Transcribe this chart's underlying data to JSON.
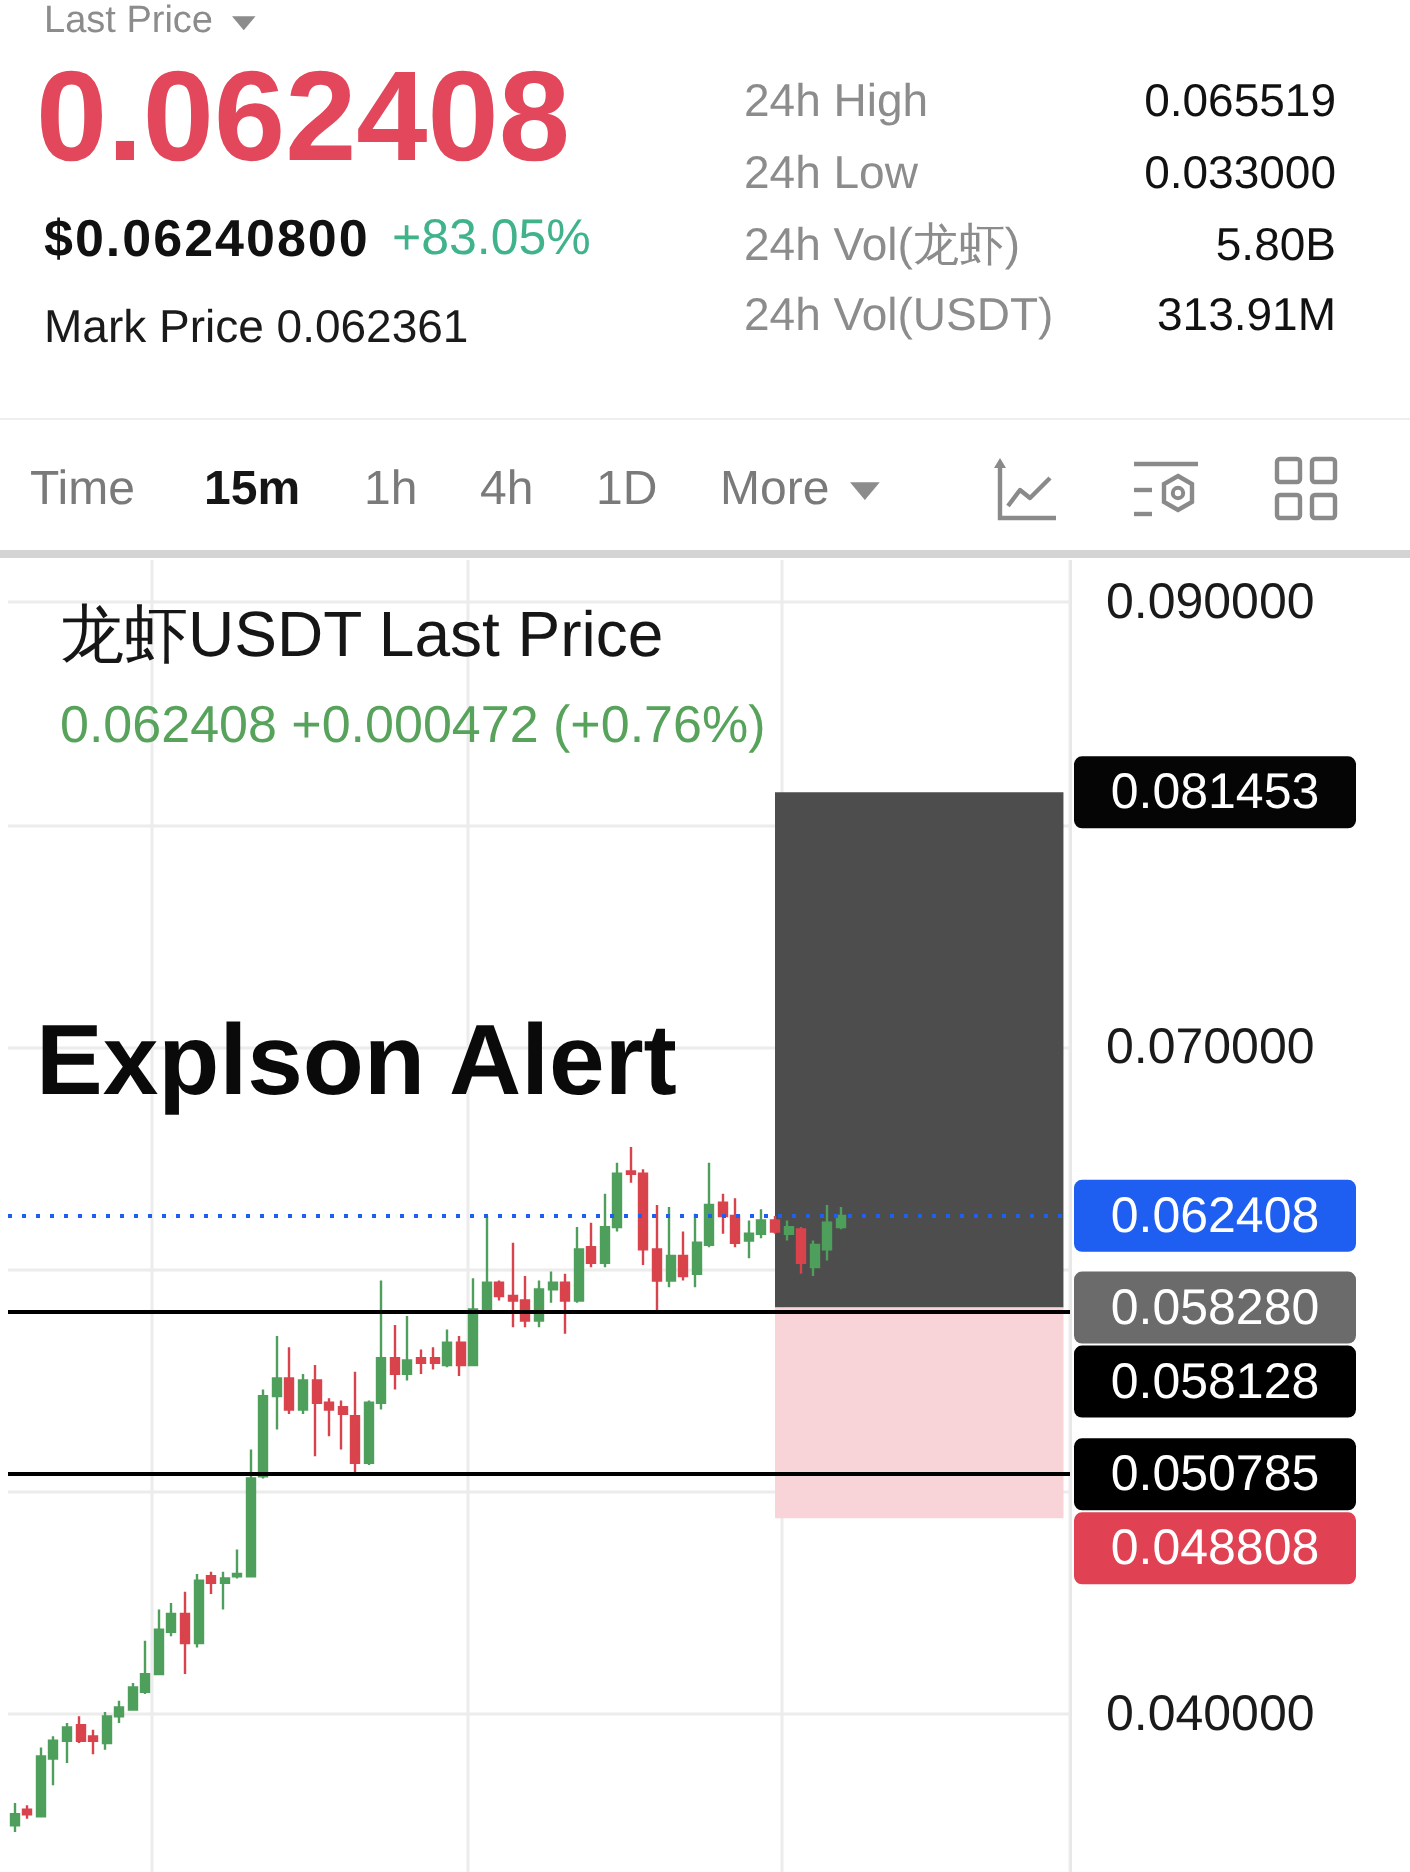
{
  "chart_data": {
    "type": "candlestick",
    "title": "龙虾USDT Last Price",
    "subtitle": "0.062408 +0.000472 (+0.76%)",
    "annotations": [
      "Last Price",
      "0.062408",
      "$0.06240800",
      "+83.05%",
      "Mark Price 0.062361",
      "24h High",
      "0.065519",
      "24h Low",
      "0.033000",
      "24h Vol(龙虾)",
      "5.80B",
      "24h Vol(USDT)",
      "313.91M",
      "Time",
      "15m",
      "1h",
      "4h",
      "1D",
      "More",
      "Explson Alert",
      "0.081453",
      "0.058280",
      "0.048808"
    ],
    "categories": [
      null,
      null,
      null,
      null,
      null,
      null,
      null,
      null,
      null,
      null,
      null,
      null,
      null,
      null,
      null,
      null,
      null,
      null,
      null,
      null,
      null,
      null,
      null,
      null,
      null,
      null,
      null,
      null,
      null,
      null,
      null,
      null,
      null,
      null,
      null,
      null,
      null,
      null,
      null,
      null,
      null,
      null,
      null,
      null,
      null,
      null,
      null,
      null,
      null,
      null,
      null,
      null,
      null,
      null,
      null,
      null,
      null,
      null,
      null,
      null,
      null,
      null,
      null,
      null,
      null,
      null,
      null,
      null,
      null,
      null,
      null,
      null,
      null,
      null,
      null,
      null,
      null,
      null,
      null,
      null,
      null
    ],
    "ohlc": [
      [
        0.035,
        0.036,
        0.0347,
        0.0355
      ],
      [
        0.0357,
        0.0359,
        0.0353,
        0.0355
      ],
      [
        0.0354,
        0.0385,
        0.0354,
        0.0381
      ],
      [
        0.038,
        0.039,
        0.0368,
        0.0388
      ],
      [
        0.0388,
        0.0396,
        0.0378,
        0.0394
      ],
      [
        0.0395,
        0.0399,
        0.0387,
        0.0388
      ],
      [
        0.039,
        0.0393,
        0.0382,
        0.0388
      ],
      [
        0.0387,
        0.0401,
        0.0384,
        0.0399
      ],
      [
        0.0399,
        0.0406,
        0.0396,
        0.0403
      ],
      [
        0.0402,
        0.0414,
        0.0402,
        0.0412
      ],
      [
        0.041,
        0.0433,
        0.0409,
        0.0418
      ],
      [
        0.0418,
        0.0447,
        0.0418,
        0.0438
      ],
      [
        0.0437,
        0.045,
        0.0435,
        0.0445
      ],
      [
        0.0445,
        0.0455,
        0.0418,
        0.0432
      ],
      [
        0.0432,
        0.0463,
        0.043,
        0.046
      ],
      [
        0.0462,
        0.0464,
        0.0454,
        0.0459
      ],
      [
        0.0459,
        0.0464,
        0.0447,
        0.0461
      ],
      [
        0.0462,
        0.0474,
        0.0461,
        0.0463
      ],
      [
        0.0462,
        0.0519,
        0.0462,
        0.0506
      ],
      [
        0.0507,
        0.0546,
        0.0506,
        0.0543
      ],
      [
        0.0543,
        0.057,
        0.0528,
        0.0551
      ],
      [
        0.0551,
        0.0565,
        0.0535,
        0.0537
      ],
      [
        0.0537,
        0.0553,
        0.0535,
        0.055
      ],
      [
        0.055,
        0.0557,
        0.0516,
        0.054
      ],
      [
        0.054,
        0.0542,
        0.0525,
        0.0537
      ],
      [
        0.0538,
        0.0541,
        0.0519,
        0.0535
      ],
      [
        0.0534,
        0.0554,
        0.0508,
        0.0513
      ],
      [
        0.0513,
        0.0541,
        0.0512,
        0.054
      ],
      [
        0.054,
        0.0595,
        0.0537,
        0.056
      ],
      [
        0.056,
        0.0575,
        0.0546,
        0.0553
      ],
      [
        0.0553,
        0.0579,
        0.055,
        0.0559
      ],
      [
        0.056,
        0.0564,
        0.0553,
        0.0558
      ],
      [
        0.056,
        0.0565,
        0.0555,
        0.0558
      ],
      [
        0.0557,
        0.0573,
        0.0556,
        0.0567
      ],
      [
        0.0567,
        0.057,
        0.0552,
        0.0557
      ],
      [
        0.0557,
        0.0596,
        0.0557,
        0.0582
      ],
      [
        0.0581,
        0.0624,
        0.058,
        0.0594
      ],
      [
        0.0594,
        0.0595,
        0.0586,
        0.0588
      ],
      [
        0.0588,
        0.0612,
        0.0574,
        0.0586
      ],
      [
        0.0586,
        0.0597,
        0.0574,
        0.0577
      ],
      [
        0.0577,
        0.0595,
        0.0574,
        0.0591
      ],
      [
        0.0591,
        0.0599,
        0.0585,
        0.0594
      ],
      [
        0.0594,
        0.0598,
        0.0571,
        0.0586
      ],
      [
        0.0586,
        0.0619,
        0.0585,
        0.0609
      ],
      [
        0.061,
        0.0621,
        0.0601,
        0.0603
      ],
      [
        0.0603,
        0.0634,
        0.0601,
        0.0619
      ],
      [
        0.0619,
        0.0648,
        0.0617,
        0.0643
      ],
      [
        0.0644,
        0.0655,
        0.0639,
        0.0643
      ],
      [
        0.0643,
        0.0645,
        0.0602,
        0.0609
      ],
      [
        0.0609,
        0.0629,
        0.0581,
        0.0595
      ],
      [
        0.0595,
        0.0628,
        0.0592,
        0.0606
      ],
      [
        0.0606,
        0.0617,
        0.0595,
        0.0597
      ],
      [
        0.0598,
        0.0625,
        0.0592,
        0.0612
      ],
      [
        0.0611,
        0.0648,
        0.061,
        0.0629
      ],
      [
        0.063,
        0.0634,
        0.0616,
        0.0624
      ],
      [
        0.0624,
        0.0632,
        0.061,
        0.0612
      ],
      [
        0.0613,
        0.0622,
        0.0605,
        0.0616
      ],
      [
        0.0616,
        0.0627,
        0.0614,
        0.0622
      ],
      [
        0.0622,
        0.0624,
        0.0616,
        0.0617
      ],
      [
        0.0616,
        0.0622,
        0.0613,
        0.0619
      ],
      [
        0.0618,
        0.0619,
        0.0598,
        0.0603
      ],
      [
        0.0601,
        0.0613,
        0.0597,
        0.0611
      ],
      [
        0.0609,
        0.0629,
        0.0604,
        0.0621
      ],
      [
        0.0619,
        0.0628,
        0.0618,
        0.0624
      ],
      null,
      null,
      null,
      null,
      null,
      null,
      null,
      null,
      null,
      null,
      null,
      null,
      null,
      null,
      null,
      null,
      null
    ],
    "colors": [
      "#4e9f5c",
      "#d9434c",
      "#4e9f5c",
      "#4e9f5c",
      "#4e9f5c",
      "#d9434c",
      "#d9434c",
      "#4e9f5c",
      "#4e9f5c",
      "#4e9f5c",
      "#4e9f5c",
      "#4e9f5c",
      "#4e9f5c",
      "#d9434c",
      "#4e9f5c",
      "#d9434c",
      "#4e9f5c",
      "#4e9f5c",
      "#4e9f5c",
      "#4e9f5c",
      "#4e9f5c",
      "#d9434c",
      "#4e9f5c",
      "#d9434c",
      "#d9434c",
      "#d9434c",
      "#d9434c",
      "#4e9f5c",
      "#4e9f5c",
      "#d9434c",
      "#4e9f5c",
      "#d9434c",
      "#d9434c",
      "#4e9f5c",
      "#d9434c",
      "#4e9f5c",
      "#4e9f5c",
      "#d9434c",
      "#d9434c",
      "#d9434c",
      "#4e9f5c",
      "#4e9f5c",
      "#d9434c",
      "#4e9f5c",
      "#d9434c",
      "#4e9f5c",
      "#4e9f5c",
      "#d9434c",
      "#d9434c",
      "#d9434c",
      "#4e9f5c",
      "#d9434c",
      "#4e9f5c",
      "#4e9f5c",
      "#d9434c",
      "#d9434c",
      "#4e9f5c",
      "#4e9f5c",
      "#d9434c",
      "#4e9f5c",
      "#d9434c",
      "#4e9f5c",
      "#4e9f5c",
      "#4e9f5c",
      null,
      null,
      null,
      null,
      null,
      null,
      null,
      null,
      null,
      null,
      null,
      null,
      null,
      null,
      null,
      null,
      null
    ],
    "ylim": [
      0.0329,
      0.0919
    ],
    "yticks": [
      {
        "value": 0.04,
        "label": "0.040000"
      },
      {
        "value": 0.05,
        "label": null
      },
      {
        "value": 0.06,
        "label": null
      },
      {
        "value": 0.07,
        "label": "0.070000"
      },
      {
        "value": 0.08,
        "label": null
      },
      {
        "value": 0.09,
        "label": "0.090000"
      }
    ],
    "tick_labels": "y",
    "grid": true,
    "ref_lines": [
      {
        "axis": "y",
        "value": 0.062408,
        "label": "0.062408",
        "color": "#1e5ef0",
        "line_style": "dotted"
      },
      {
        "axis": "y",
        "value": 0.058128,
        "label": "0.058128",
        "color": "#000000",
        "line_style": "solid"
      },
      {
        "axis": "y",
        "value": 0.050785,
        "label": "0.050785",
        "color": "#000000",
        "line_style": "solid"
      }
    ],
    "bands": [
      {
        "axis": "y",
        "from": 0.05828,
        "to": 0.081453,
        "color": "#4d4d4d"
      },
      {
        "axis": "y",
        "from": 0.048808,
        "to": 0.05828,
        "color": "#f8d3d7"
      }
    ]
  }
}
